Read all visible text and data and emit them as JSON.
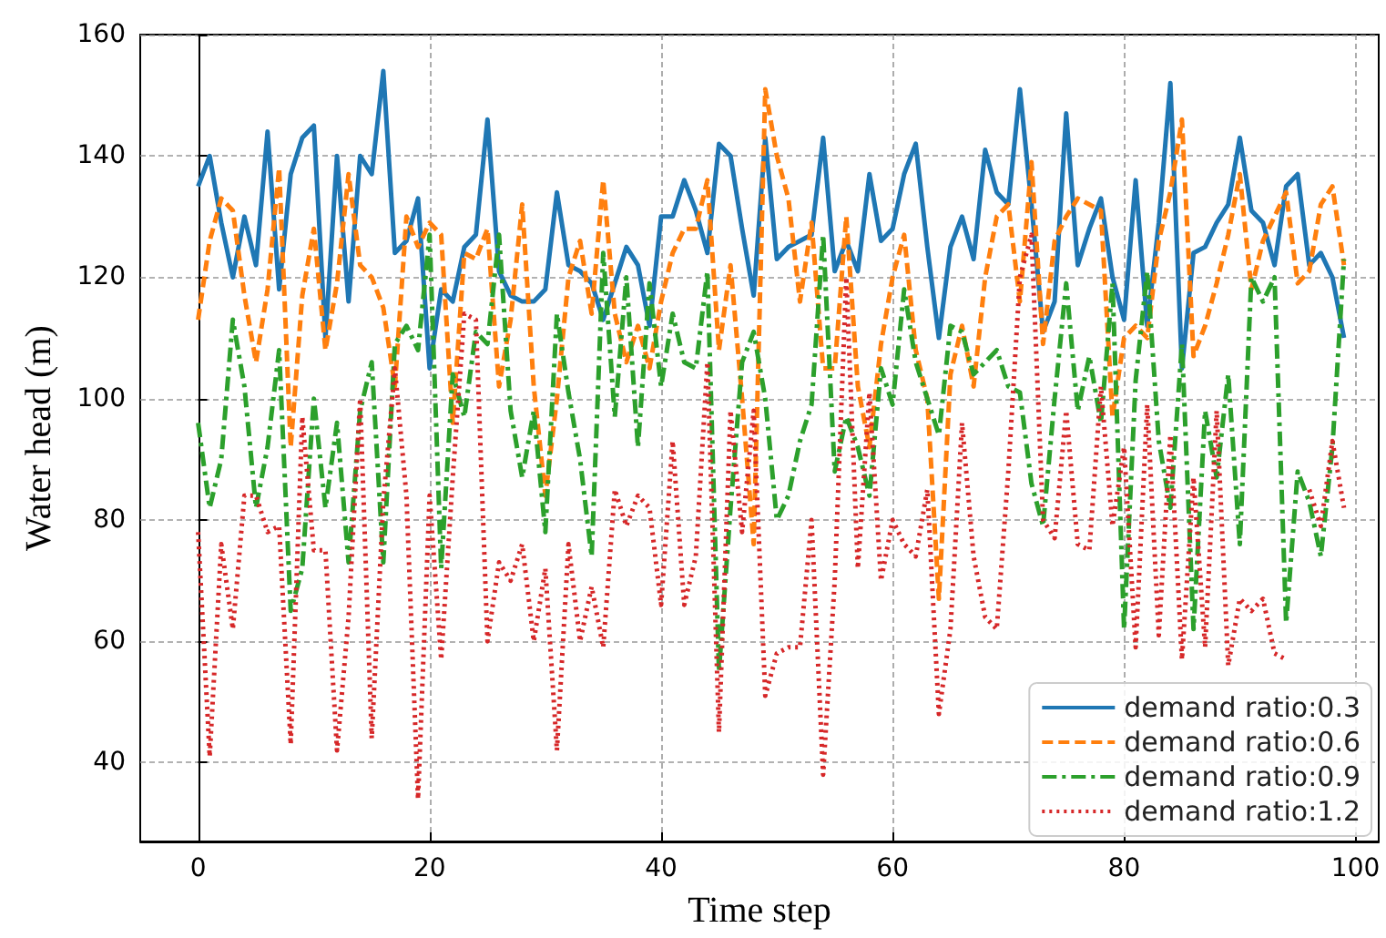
{
  "chart_data": {
    "type": "line",
    "xlabel": "Time step",
    "ylabel": "Water head (m)",
    "x": [
      0,
      1,
      2,
      3,
      4,
      5,
      6,
      7,
      8,
      9,
      10,
      11,
      12,
      13,
      14,
      15,
      16,
      17,
      18,
      19,
      20,
      21,
      22,
      23,
      24,
      25,
      26,
      27,
      28,
      29,
      30,
      31,
      32,
      33,
      34,
      35,
      36,
      37,
      38,
      39,
      40,
      41,
      42,
      43,
      44,
      45,
      46,
      47,
      48,
      49,
      50,
      51,
      52,
      53,
      54,
      55,
      56,
      57,
      58,
      59,
      60,
      61,
      62,
      63,
      64,
      65,
      66,
      67,
      68,
      69,
      70,
      71,
      72,
      73,
      74,
      75,
      76,
      77,
      78,
      79,
      80,
      81,
      82,
      83,
      84,
      85,
      86,
      87,
      88,
      89,
      90,
      91,
      92,
      93,
      94,
      95,
      96,
      97,
      98,
      99
    ],
    "xlim": [
      -5,
      102
    ],
    "xticks": [
      0,
      20,
      40,
      60,
      80,
      100
    ],
    "ylim": [
      27,
      160
    ],
    "yticks": [
      40,
      60,
      80,
      100,
      120,
      140,
      160
    ],
    "grid": true,
    "legend": "bottom right",
    "marker": "none",
    "series": [
      {
        "name": "demand ratio:0.3",
        "color": "#1f77b4",
        "line_style": "solid",
        "values": [
          135,
          140,
          129,
          120,
          130,
          122,
          144,
          118,
          137,
          143,
          145,
          110,
          140,
          116,
          140,
          137,
          154,
          124,
          126,
          133,
          105,
          118,
          116,
          125,
          127,
          146,
          121,
          117,
          116,
          116,
          118,
          134,
          122,
          121,
          119,
          113,
          119,
          125,
          122,
          112,
          130,
          130,
          136,
          131,
          124,
          142,
          140,
          128,
          117,
          143,
          123,
          125,
          126,
          127,
          143,
          121,
          126,
          121,
          137,
          126,
          128,
          137,
          142,
          125,
          110,
          125,
          130,
          123,
          141,
          134,
          132,
          151,
          132,
          111,
          116,
          147,
          122,
          128,
          133,
          120,
          113,
          136,
          112,
          129,
          152,
          105,
          124,
          125,
          129,
          132,
          143,
          131,
          129,
          122,
          135,
          137,
          122,
          124,
          120,
          110
        ]
      },
      {
        "name": "demand ratio:0.6",
        "color": "#ff7f0e",
        "line_style": "dashed",
        "values": [
          113,
          126,
          133,
          131,
          117,
          106,
          118,
          138,
          92,
          117,
          128,
          108,
          119,
          137,
          122,
          120,
          115,
          102,
          130,
          125,
          129,
          127,
          96,
          124,
          123,
          128,
          102,
          113,
          132,
          102,
          84,
          100,
          120,
          126,
          114,
          136,
          114,
          106,
          112,
          105,
          116,
          124,
          128,
          128,
          136,
          108,
          122,
          100,
          76,
          151,
          140,
          133,
          116,
          129,
          105,
          105,
          130,
          102,
          92,
          109,
          120,
          127,
          108,
          100,
          67,
          104,
          112,
          102,
          120,
          130,
          132,
          116,
          139,
          109,
          126,
          130,
          133,
          132,
          131,
          97,
          110,
          112,
          110,
          126,
          134,
          146,
          107,
          112,
          119,
          127,
          137,
          118,
          126,
          130,
          134,
          119,
          121,
          132,
          135,
          122
        ]
      },
      {
        "name": "demand ratio:0.9",
        "color": "#2ca02c",
        "line_style": "dashdot",
        "values": [
          96,
          82,
          90,
          113,
          102,
          82,
          92,
          108,
          65,
          72,
          100,
          82,
          96,
          73,
          98,
          106,
          73,
          109,
          112,
          108,
          127,
          72,
          104,
          97,
          111,
          109,
          127,
          98,
          87,
          98,
          78,
          114,
          101,
          90,
          74,
          124,
          97,
          120,
          92,
          119,
          102,
          114,
          106,
          105,
          121,
          55,
          82,
          106,
          111,
          100,
          80,
          84,
          93,
          99,
          127,
          88,
          97,
          92,
          84,
          105,
          99,
          118,
          106,
          100,
          94,
          112,
          111,
          104,
          106,
          108,
          102,
          101,
          86,
          79,
          100,
          119,
          98,
          107,
          96,
          119,
          62,
          103,
          121,
          93,
          82,
          109,
          62,
          98,
          87,
          104,
          76,
          120,
          116,
          120,
          63,
          88,
          83,
          74,
          92,
          123
        ]
      },
      {
        "name": "demand ratio:1.2",
        "color": "#d62728",
        "line_style": "dotted",
        "values": [
          78,
          41,
          76,
          62,
          84,
          84,
          78,
          79,
          43,
          97,
          75,
          75,
          42,
          64,
          100,
          44,
          83,
          105,
          84,
          34,
          84,
          57,
          87,
          114,
          113,
          60,
          73,
          70,
          76,
          60,
          72,
          42,
          76,
          60,
          69,
          59,
          85,
          79,
          84,
          82,
          66,
          93,
          66,
          74,
          106,
          45,
          98,
          78,
          98,
          51,
          58,
          59,
          59,
          80,
          38,
          70,
          120,
          72,
          101,
          70,
          80,
          76,
          74,
          85,
          48,
          62,
          96,
          74,
          64,
          62,
          88,
          120,
          127,
          80,
          77,
          98,
          76,
          75,
          102,
          79,
          92,
          59,
          99,
          61,
          94,
          57,
          87,
          59,
          98,
          56,
          67,
          65,
          67,
          58,
          57,
          null,
          85,
          79,
          93,
          82
        ]
      }
    ]
  }
}
